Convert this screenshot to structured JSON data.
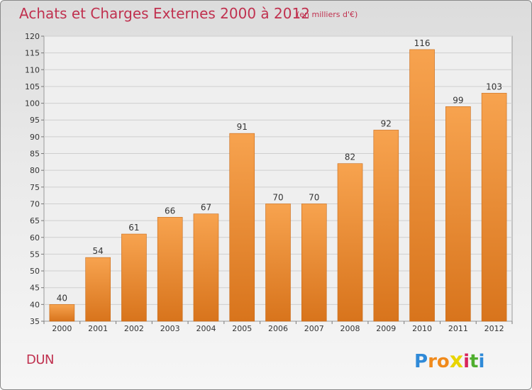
{
  "chart_data": {
    "type": "bar",
    "title": "Achats et Charges Externes 2000 à 2012",
    "subtitle": "(en milliers d'€)",
    "categories": [
      "2000",
      "2001",
      "2002",
      "2003",
      "2004",
      "2005",
      "2006",
      "2007",
      "2008",
      "2009",
      "2010",
      "2011",
      "2012"
    ],
    "values": [
      40,
      54,
      61,
      66,
      67,
      91,
      70,
      70,
      82,
      92,
      116,
      99,
      103
    ],
    "ylim": [
      35,
      120
    ],
    "yticks": [
      35,
      40,
      45,
      50,
      55,
      60,
      65,
      70,
      75,
      80,
      85,
      90,
      95,
      100,
      105,
      110,
      115,
      120
    ],
    "grid": true,
    "colors": {
      "bar_top": "#f7a34f",
      "bar_bottom": "#d8741c",
      "title": "#c0314f"
    }
  },
  "footer": {
    "place": "DUN",
    "logo_letters": [
      "P",
      "r",
      "o",
      "x",
      "i",
      "t",
      "i"
    ],
    "logo_colors": [
      "#2f8ad8",
      "#f08a1c",
      "#f08a1c",
      "#e8d400",
      "#d8245c",
      "#4fae2f",
      "#2f8ad8"
    ]
  }
}
